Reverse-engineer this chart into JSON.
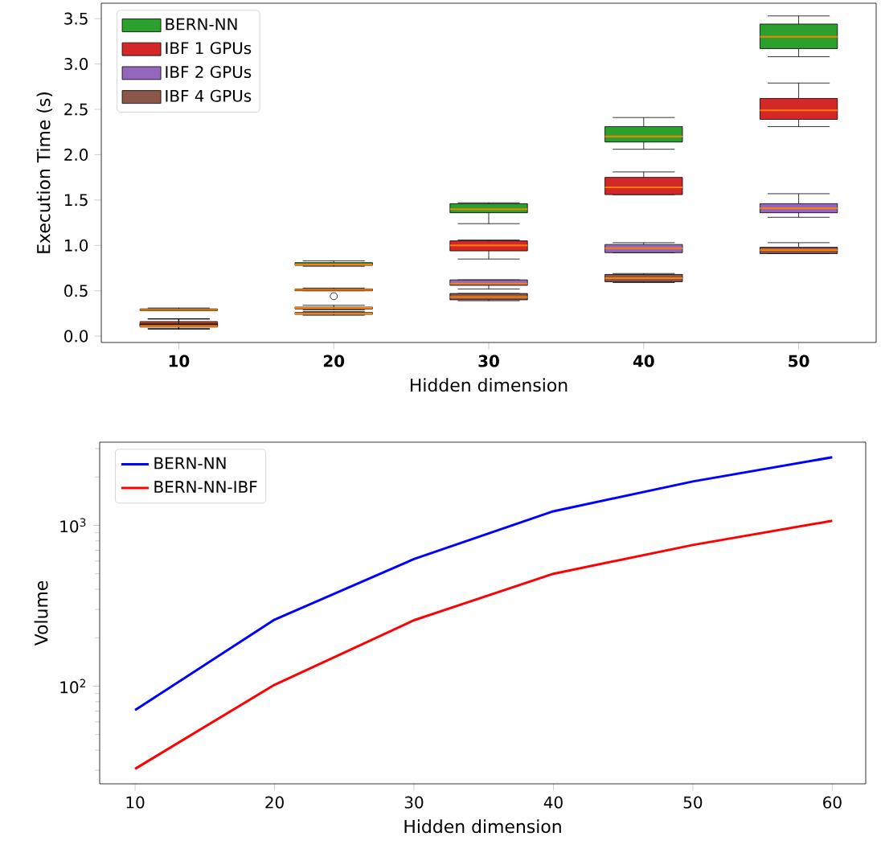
{
  "chart_data": [
    {
      "type": "box",
      "xlabel": "Hidden dimension",
      "ylabel": "Execution Time (s)",
      "categories": [
        "10",
        "20",
        "30",
        "40",
        "50"
      ],
      "ylim": [
        -0.07,
        3.67
      ],
      "yticks": [
        {
          "value": 0,
          "label": "0.0"
        },
        {
          "value": 0.5,
          "label": "0.5"
        },
        {
          "value": 1,
          "label": "1.0"
        },
        {
          "value": 1.5,
          "label": "1.5"
        },
        {
          "value": 2,
          "label": "2.0"
        },
        {
          "value": 2.5,
          "label": "2.5"
        },
        {
          "value": 3,
          "label": "3.0"
        },
        {
          "value": 3.5,
          "label": "3.5"
        }
      ],
      "legend": "top left",
      "series": [
        {
          "name": "BERN-NN",
          "color": "#2ca02c",
          "boxes": [
            {
              "low": 0.28,
              "q1": 0.28,
              "median": 0.29,
              "q3": 0.3,
              "high": 0.31
            },
            {
              "low": 0.77,
              "q1": 0.78,
              "median": 0.79,
              "q3": 0.81,
              "high": 0.83
            },
            {
              "low": 1.24,
              "q1": 1.36,
              "median": 1.4,
              "q3": 1.46,
              "high": 1.47
            },
            {
              "low": 2.06,
              "q1": 2.14,
              "median": 2.2,
              "q3": 2.31,
              "high": 2.41
            },
            {
              "low": 3.08,
              "q1": 3.17,
              "median": 3.3,
              "q3": 3.44,
              "high": 3.53
            }
          ]
        },
        {
          "name": "IBF 1 GPUs",
          "color": "#d62728",
          "boxes": [
            {
              "low": 0.08,
              "q1": 0.12,
              "median": 0.14,
              "q3": 0.16,
              "high": 0.19
            },
            {
              "low": 0.5,
              "q1": 0.5,
              "median": 0.51,
              "q3": 0.52,
              "high": 0.53,
              "outliers": [
                0.44
              ]
            },
            {
              "low": 0.85,
              "q1": 0.94,
              "median": 1.0,
              "q3": 1.05,
              "high": 1.06
            },
            {
              "low": 1.56,
              "q1": 1.56,
              "median": 1.64,
              "q3": 1.75,
              "high": 1.81
            },
            {
              "low": 2.31,
              "q1": 2.39,
              "median": 2.49,
              "q3": 2.62,
              "high": 2.79
            }
          ]
        },
        {
          "name": "IBF 2 GPUs",
          "color": "#9467bd",
          "boxes": [
            {
              "low": 0.08,
              "q1": 0.11,
              "median": 0.12,
              "q3": 0.14,
              "high": 0.19
            },
            {
              "low": 0.29,
              "q1": 0.3,
              "median": 0.31,
              "q3": 0.32,
              "high": 0.34
            },
            {
              "low": 0.52,
              "q1": 0.56,
              "median": 0.58,
              "q3": 0.62,
              "high": 0.62
            },
            {
              "low": 0.92,
              "q1": 0.92,
              "median": 0.97,
              "q3": 1.01,
              "high": 1.03
            },
            {
              "low": 1.31,
              "q1": 1.36,
              "median": 1.41,
              "q3": 1.46,
              "high": 1.57
            }
          ]
        },
        {
          "name": "IBF 4 GPUs",
          "color": "#8c564b",
          "boxes": [
            {
              "low": 0.08,
              "q1": 0.1,
              "median": 0.11,
              "q3": 0.13,
              "high": 0.19
            },
            {
              "low": 0.23,
              "q1": 0.24,
              "median": 0.25,
              "q3": 0.26,
              "high": 0.27
            },
            {
              "low": 0.39,
              "q1": 0.4,
              "median": 0.43,
              "q3": 0.47,
              "high": 0.47
            },
            {
              "low": 0.59,
              "q1": 0.6,
              "median": 0.64,
              "q3": 0.68,
              "high": 0.69
            },
            {
              "low": 0.91,
              "q1": 0.91,
              "median": 0.95,
              "q3": 0.98,
              "high": 1.03
            }
          ]
        }
      ]
    },
    {
      "type": "line",
      "xlabel": "Hidden dimension",
      "ylabel": "Volume",
      "log": "y",
      "x": [
        10,
        20,
        30,
        40,
        50,
        60
      ],
      "xlim": [
        7.46,
        62.4
      ],
      "ylim": [
        24.7,
        3290
      ],
      "xticks": [
        10,
        20,
        30,
        40,
        50,
        60
      ],
      "yticks": [
        {
          "value": 100,
          "label": "10$^{2}$"
        },
        {
          "value": 1000,
          "label": "10$^{3}$"
        }
      ],
      "legend": "top left",
      "line_style": "solid",
      "marker": "none",
      "series": [
        {
          "name": "BERN-NN",
          "color": "#0000ff",
          "values": [
            71,
            259,
            617,
            1223,
            1874,
            2650
          ]
        },
        {
          "name": "BERN-NN-IBF",
          "color": "#ff0000",
          "values": [
            30.6,
            102,
            257,
            500,
            755,
            1067
          ]
        }
      ]
    }
  ]
}
